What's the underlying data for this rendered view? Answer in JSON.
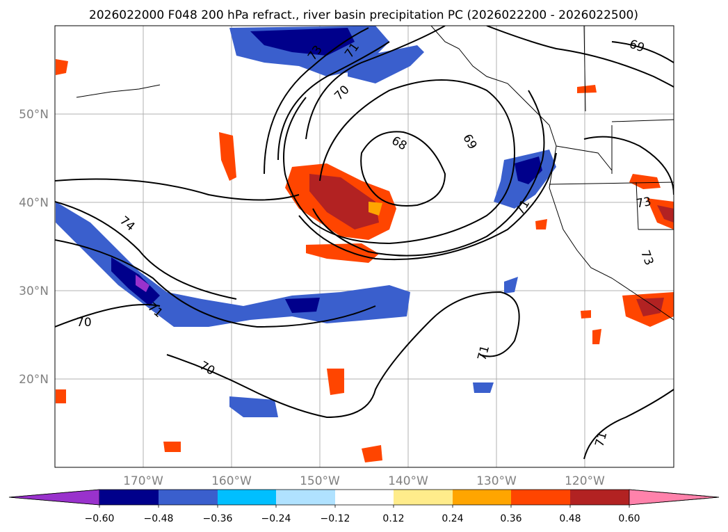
{
  "title": "2026022000 F048 200 hPa refract., river basin precipitation PC (2026022200 - 2026022500)",
  "map": {
    "lon_range": [
      -180,
      -110
    ],
    "lat_range": [
      10,
      60
    ],
    "grid": true,
    "lat_labels": [
      "20°N",
      "30°N",
      "40°N",
      "50°N"
    ],
    "lon_labels": [
      "170°W",
      "160°W",
      "150°W",
      "140°W",
      "130°W",
      "120°W"
    ]
  },
  "contour_labels": [
    "73",
    "71",
    "70",
    "69",
    "68",
    "69",
    "71",
    "73",
    "73",
    "74",
    "71",
    "70",
    "70",
    "71",
    "71"
  ],
  "colorbar": {
    "extend": "both",
    "ticks": [
      "−0.60",
      "−0.48",
      "−0.36",
      "−0.24",
      "−0.12",
      "0.12",
      "0.24",
      "0.36",
      "0.48",
      "0.60"
    ],
    "colors": [
      "#9932cc",
      "#00008b",
      "#3a5fcd",
      "#00bfff",
      "#b0e2ff",
      "#ffffff",
      "#ffec8b",
      "#ffa500",
      "#ff4500",
      "#b22222",
      "#ff82ab"
    ]
  },
  "colors": {
    "land_outline": "#000000",
    "grid": "#b0b0b0",
    "contour": "#000000"
  }
}
